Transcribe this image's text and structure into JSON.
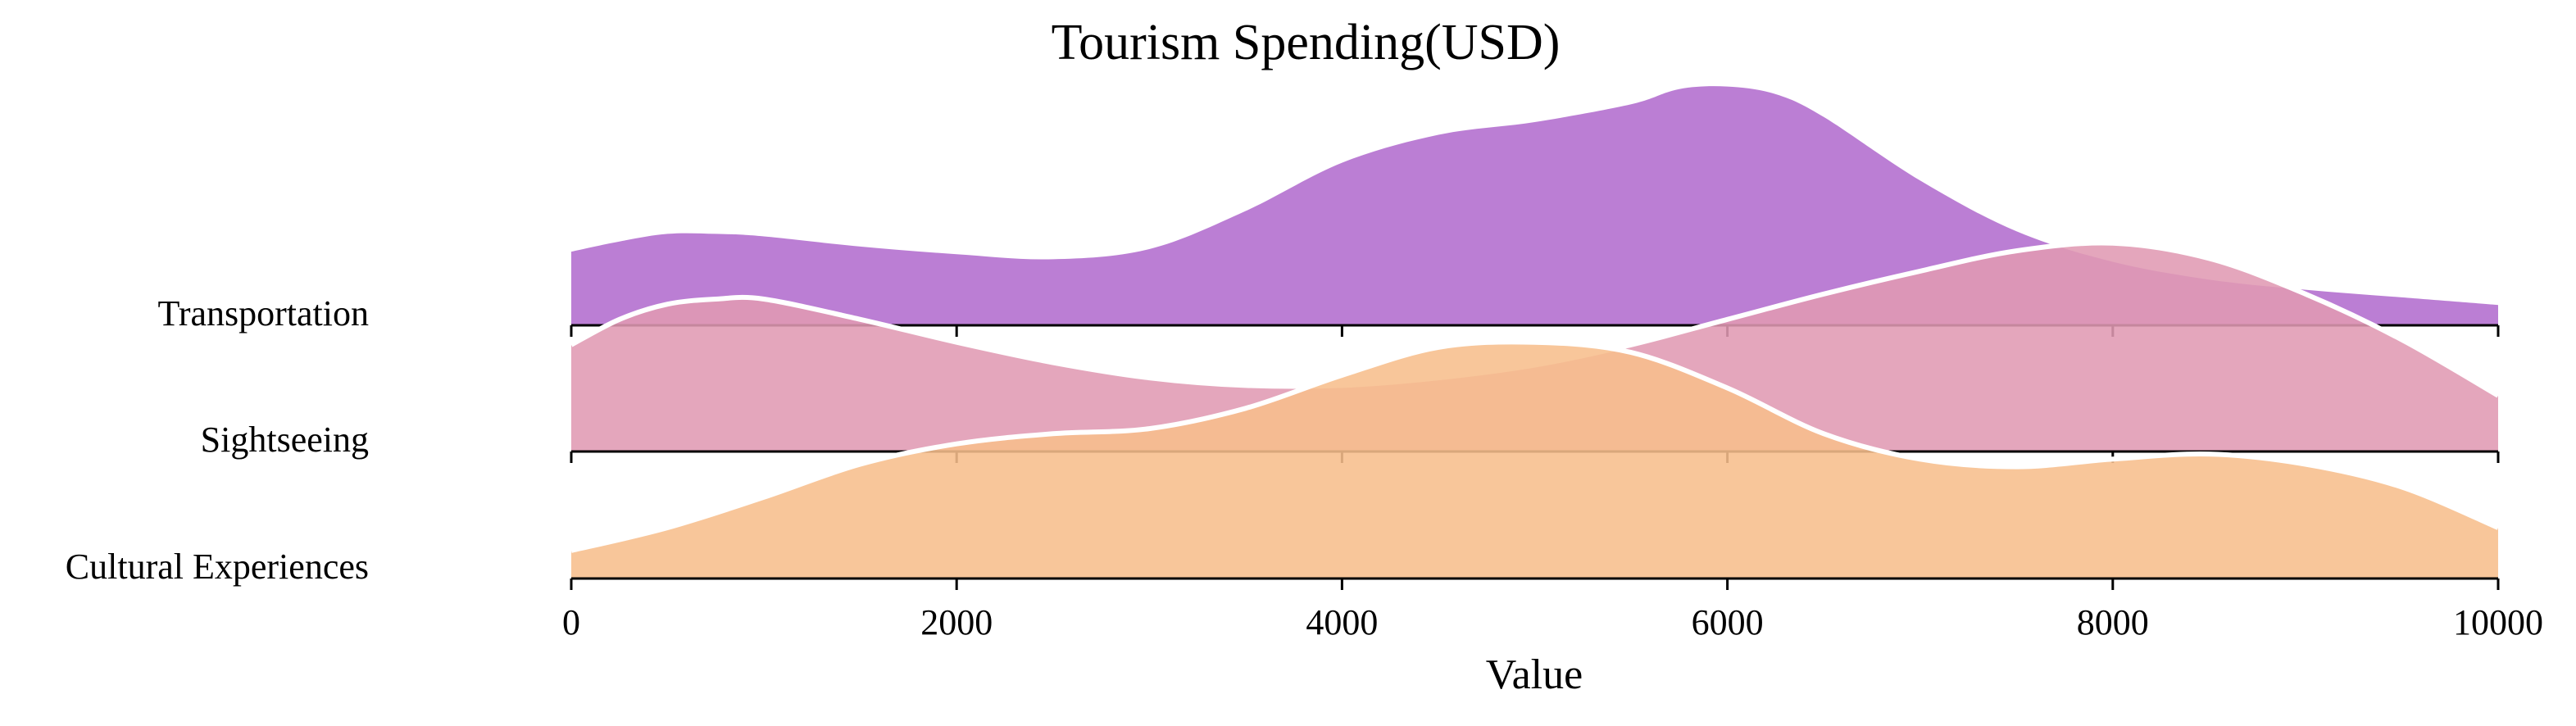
{
  "chart_data": {
    "type": "ridgeline",
    "title": "Tourism Spending(USD)",
    "xlabel": "Value",
    "xlim": [
      0,
      10000
    ],
    "xticks": [
      0,
      2000,
      4000,
      6000,
      8000,
      10000
    ],
    "tick_labels": [
      "0",
      "2000",
      "4000",
      "6000",
      "8000",
      "10000"
    ],
    "grid": false,
    "series": [
      {
        "name": "Transportation",
        "color": "#b26cce",
        "x": [
          0,
          250,
          500,
          750,
          1000,
          1500,
          2000,
          2500,
          3000,
          3500,
          4000,
          4500,
          5000,
          5500,
          5750,
          6000,
          6250,
          6500,
          7000,
          7500,
          8000,
          8500,
          9000,
          9500,
          10000
        ],
        "density": [
          0.29,
          0.33,
          0.36,
          0.36,
          0.35,
          0.31,
          0.28,
          0.26,
          0.3,
          0.45,
          0.64,
          0.75,
          0.8,
          0.87,
          0.93,
          0.94,
          0.91,
          0.82,
          0.57,
          0.37,
          0.25,
          0.18,
          0.14,
          0.11,
          0.08
        ]
      },
      {
        "name": "Sightseeing",
        "color": "#e09ab3",
        "x": [
          0,
          250,
          500,
          750,
          1000,
          1500,
          2000,
          2500,
          3000,
          3500,
          4000,
          4500,
          5000,
          5500,
          6000,
          6500,
          7000,
          7500,
          8000,
          8500,
          9000,
          9500,
          10000
        ],
        "density": [
          0.42,
          0.52,
          0.58,
          0.6,
          0.6,
          0.52,
          0.43,
          0.35,
          0.29,
          0.26,
          0.26,
          0.29,
          0.34,
          0.42,
          0.52,
          0.62,
          0.71,
          0.79,
          0.82,
          0.76,
          0.62,
          0.44,
          0.22
        ]
      },
      {
        "name": "Cultural Experiences",
        "color": "#f7be8c",
        "x": [
          0,
          500,
          1000,
          1500,
          2000,
          2500,
          3000,
          3500,
          4000,
          4500,
          5000,
          5500,
          6000,
          6500,
          7000,
          7500,
          8000,
          8500,
          9000,
          9500,
          10000
        ],
        "density": [
          0.11,
          0.2,
          0.32,
          0.45,
          0.53,
          0.57,
          0.59,
          0.67,
          0.8,
          0.91,
          0.93,
          0.89,
          0.75,
          0.57,
          0.47,
          0.44,
          0.47,
          0.49,
          0.45,
          0.36,
          0.2
        ]
      }
    ]
  }
}
